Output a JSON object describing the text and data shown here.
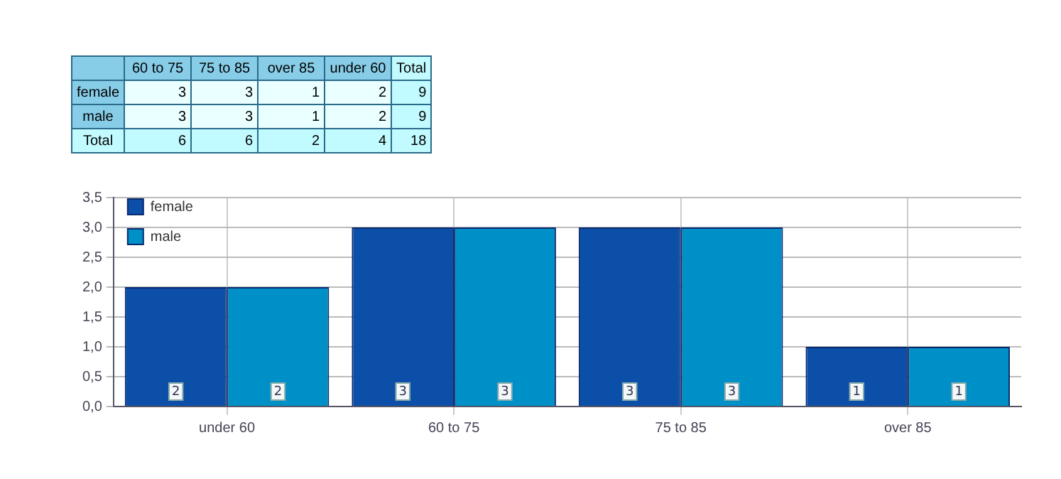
{
  "chart_data": [
    {
      "type": "heatmap",
      "categories": [
        "60 to 75",
        "75 to 85",
        "over 85",
        "under 60",
        "Total"
      ],
      "y_categories": [
        "female",
        "male",
        "Total"
      ],
      "cells": [
        [
          3,
          3,
          1,
          2,
          9
        ],
        [
          3,
          3,
          1,
          2,
          9
        ],
        [
          6,
          6,
          2,
          4,
          18
        ]
      ],
      "data_labels": true
    },
    {
      "type": "bar",
      "categories": [
        "under 60",
        "60 to 75",
        "75 to 85",
        "over 85"
      ],
      "series": [
        {
          "name": "female",
          "color": "#0b4fa8",
          "values": [
            2,
            3,
            3,
            1
          ]
        },
        {
          "name": "male",
          "color": "#0090c8",
          "values": [
            2,
            3,
            3,
            1
          ]
        }
      ],
      "ylim": [
        0,
        3.5
      ],
      "yticks": [
        {
          "value": 0,
          "label": "0,0"
        },
        {
          "value": 0.5,
          "label": "0,5"
        },
        {
          "value": 1,
          "label": "1,0"
        },
        {
          "value": 1.5,
          "label": "1,5"
        },
        {
          "value": 2,
          "label": "2,0"
        },
        {
          "value": 2.5,
          "label": "2,5"
        },
        {
          "value": 3,
          "label": "3,0"
        },
        {
          "value": 3.5,
          "label": "3,5"
        }
      ],
      "grid": true,
      "legend": "top left",
      "data_labels": true
    }
  ]
}
